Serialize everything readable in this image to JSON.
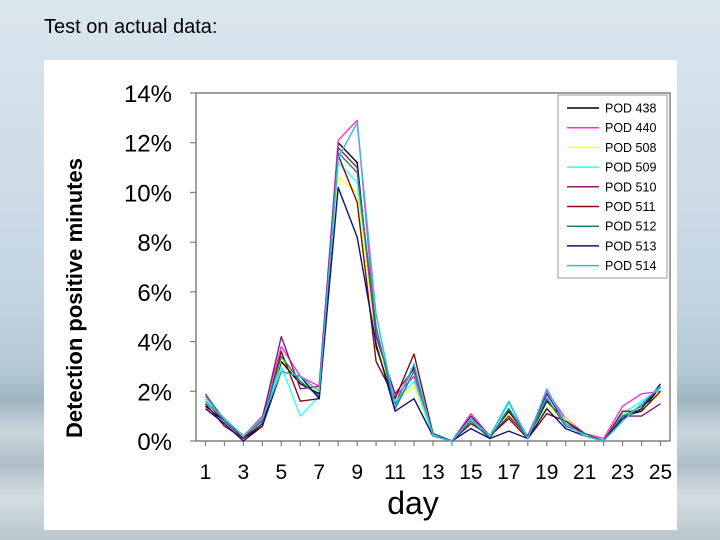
{
  "slide": {
    "title": "Test on actual data:"
  },
  "chart_data": {
    "type": "line",
    "title": "",
    "xlabel": "day",
    "ylabel": "Detection positive minutes",
    "x": [
      1,
      2,
      3,
      4,
      5,
      6,
      7,
      8,
      9,
      10,
      11,
      12,
      13,
      14,
      15,
      16,
      17,
      18,
      19,
      20,
      21,
      22,
      23,
      24,
      25
    ],
    "x_ticks": [
      "1",
      "3",
      "5",
      "7",
      "9",
      "11",
      "13",
      "15",
      "17",
      "19",
      "21",
      "23",
      "25"
    ],
    "y_ticks": [
      "0%",
      "2%",
      "4%",
      "6%",
      "8%",
      "10%",
      "12%",
      "14%"
    ],
    "ylim": [
      0,
      14
    ],
    "grid": false,
    "legend_position": "top-right",
    "series": [
      {
        "name": "POD 438",
        "color": "#000000",
        "values": [
          1.4,
          0.8,
          0.1,
          0.6,
          3.2,
          2.3,
          1.9,
          12.0,
          11.2,
          3.8,
          1.5,
          3.0,
          0.2,
          0.0,
          0.9,
          0.2,
          1.2,
          0.1,
          1.6,
          0.8,
          0.3,
          0.0,
          1.0,
          1.2,
          2.2
        ]
      },
      {
        "name": "POD 440",
        "color": "#ff33cc",
        "values": [
          1.8,
          0.9,
          0.2,
          1.0,
          3.8,
          2.6,
          2.2,
          12.1,
          12.9,
          4.3,
          1.8,
          2.6,
          0.3,
          0.0,
          1.1,
          0.2,
          1.3,
          0.2,
          2.0,
          0.9,
          0.3,
          0.1,
          1.4,
          1.9,
          2.0
        ]
      },
      {
        "name": "POD 508",
        "color": "#ffff33",
        "values": [
          1.6,
          0.8,
          0.1,
          0.8,
          3.3,
          2.4,
          2.1,
          10.6,
          10.0,
          4.0,
          1.6,
          2.2,
          0.2,
          0.0,
          0.8,
          0.1,
          1.1,
          0.1,
          1.4,
          0.9,
          0.2,
          0.0,
          1.0,
          1.3,
          1.9
        ]
      },
      {
        "name": "POD 509",
        "color": "#33ffff",
        "values": [
          1.7,
          0.9,
          0.2,
          0.9,
          3.0,
          1.0,
          1.8,
          11.2,
          10.4,
          4.5,
          1.6,
          2.4,
          0.2,
          0.0,
          0.9,
          0.1,
          1.5,
          0.2,
          1.8,
          0.8,
          0.3,
          0.0,
          1.1,
          1.6,
          2.1
        ]
      },
      {
        "name": "POD 510",
        "color": "#7f1f7f",
        "values": [
          1.6,
          0.8,
          0.1,
          0.9,
          4.2,
          2.1,
          2.2,
          11.8,
          11.0,
          4.2,
          1.9,
          2.9,
          0.3,
          0.0,
          1.0,
          0.2,
          1.0,
          0.2,
          1.9,
          0.7,
          0.3,
          0.0,
          1.0,
          1.0,
          1.5
        ]
      },
      {
        "name": "POD 511",
        "color": "#7f1010",
        "values": [
          1.5,
          0.6,
          0.1,
          0.7,
          3.6,
          1.6,
          1.7,
          11.5,
          9.6,
          3.2,
          1.7,
          3.5,
          0.3,
          0.0,
          0.7,
          0.2,
          0.9,
          0.1,
          1.1,
          0.8,
          0.3,
          0.0,
          1.2,
          1.2,
          2.0
        ]
      },
      {
        "name": "POD 512",
        "color": "#1f7f7f",
        "values": [
          1.9,
          0.8,
          0.2,
          0.8,
          3.4,
          2.4,
          1.8,
          11.6,
          10.8,
          4.6,
          1.3,
          2.8,
          0.3,
          0.0,
          0.8,
          0.1,
          1.3,
          0.1,
          1.7,
          0.6,
          0.3,
          0.0,
          1.0,
          1.4,
          2.2
        ]
      },
      {
        "name": "POD 513",
        "color": "#101080",
        "values": [
          1.3,
          0.7,
          0.0,
          0.6,
          2.8,
          2.6,
          1.7,
          10.2,
          8.2,
          3.9,
          1.2,
          1.7,
          0.2,
          0.0,
          0.5,
          0.1,
          0.4,
          0.1,
          1.3,
          0.5,
          0.2,
          0.0,
          0.9,
          1.3,
          2.3
        ]
      },
      {
        "name": "POD 514",
        "color": "#33bbdd",
        "values": [
          1.6,
          0.9,
          0.2,
          0.9,
          2.8,
          2.6,
          2.0,
          11.4,
          12.8,
          5.1,
          1.4,
          3.1,
          0.2,
          0.0,
          0.9,
          0.2,
          1.6,
          0.1,
          2.1,
          0.7,
          0.2,
          0.0,
          0.8,
          1.5,
          2.2
        ]
      }
    ]
  }
}
